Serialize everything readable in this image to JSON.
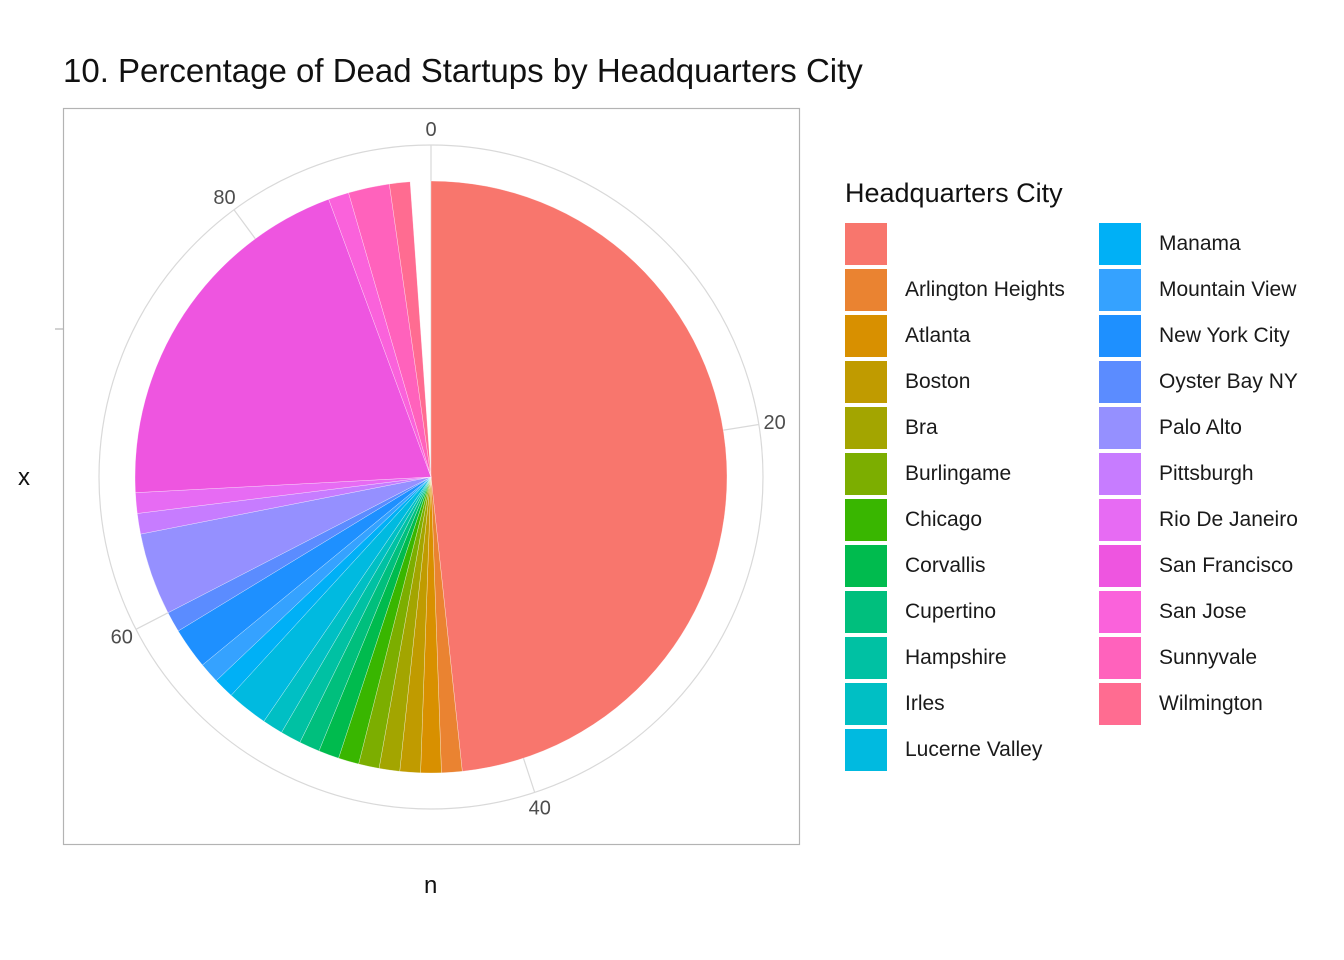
{
  "chart_data": {
    "type": "pie",
    "title": "10. Percentage of Dead Startups by Headquarters City",
    "xlabel": "n",
    "ylabel": "x",
    "legend_title": "Headquarters City",
    "legend_placement": "right",
    "angular_axis": {
      "range": [
        0,
        89
      ],
      "ticks": [
        0,
        20,
        40,
        60,
        80
      ]
    },
    "grid": true,
    "slices": [
      {
        "label": "",
        "value": 43,
        "color": "#F8766D"
      },
      {
        "label": "Arlington Heights",
        "value": 1,
        "color": "#EA8331"
      },
      {
        "label": "Atlanta",
        "value": 1,
        "color": "#D89000"
      },
      {
        "label": "Boston",
        "value": 1,
        "color": "#C09B00"
      },
      {
        "label": "Bra",
        "value": 1,
        "color": "#A3A500"
      },
      {
        "label": "Burlingame",
        "value": 1,
        "color": "#7CAE00"
      },
      {
        "label": "Chicago",
        "value": 1,
        "color": "#39B600"
      },
      {
        "label": "Corvallis",
        "value": 1,
        "color": "#00BB4E"
      },
      {
        "label": "Cupertino",
        "value": 1,
        "color": "#00BF7D"
      },
      {
        "label": "Hampshire",
        "value": 1,
        "color": "#00C1A3"
      },
      {
        "label": "Irles",
        "value": 1,
        "color": "#00BFC4"
      },
      {
        "label": "Lucerne Valley",
        "value": 2,
        "color": "#00BAE0"
      },
      {
        "label": "Manama",
        "value": 1,
        "color": "#00B0F6"
      },
      {
        "label": "Mountain View",
        "value": 1,
        "color": "#35A2FF"
      },
      {
        "label": "New York City",
        "value": 2,
        "color": "#1E90FF"
      },
      {
        "label": "Oyster Bay NY",
        "value": 1,
        "color": "#5B8CFF"
      },
      {
        "label": "Palo Alto",
        "value": 4,
        "color": "#9590FF"
      },
      {
        "label": "Pittsburgh",
        "value": 1,
        "color": "#C77CFF"
      },
      {
        "label": "Rio De Janeiro",
        "value": 1,
        "color": "#E76BF3"
      },
      {
        "label": "San Francisco",
        "value": 18,
        "color": "#EE55E0"
      },
      {
        "label": "San Jose",
        "value": 1,
        "color": "#FA62DB"
      },
      {
        "label": "Sunnyvale",
        "value": 2,
        "color": "#FF62BC"
      },
      {
        "label": "Wilmington",
        "value": 1,
        "color": "#FF6C91"
      }
    ]
  }
}
